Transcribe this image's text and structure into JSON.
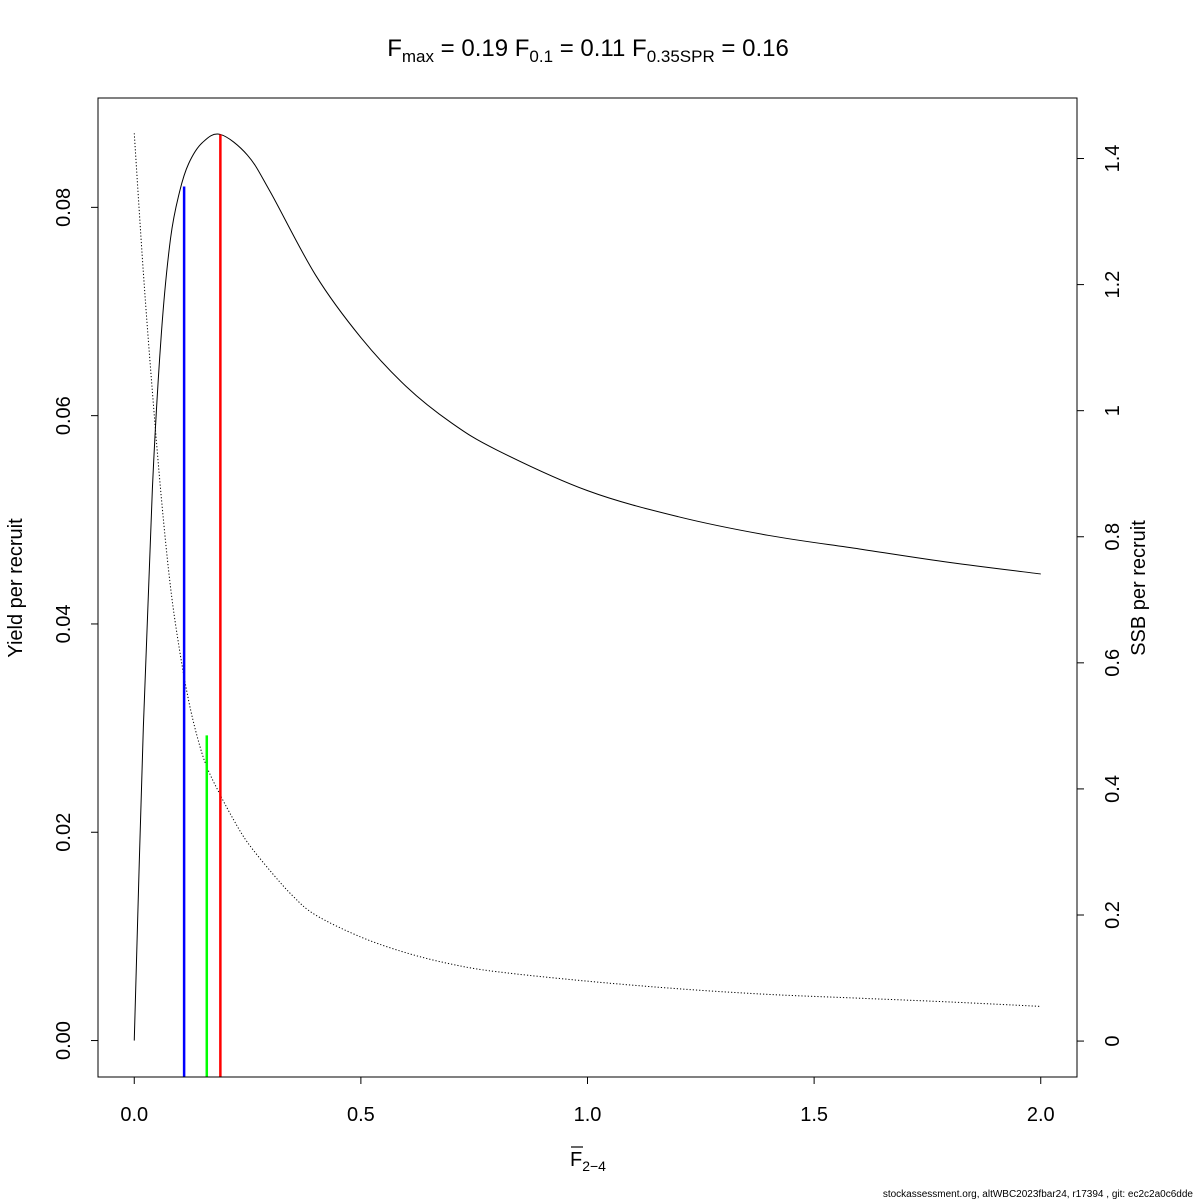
{
  "chart_data": {
    "type": "line",
    "title": {
      "fmax": {
        "sym": "F",
        "sub": "max",
        "value": "0.19"
      },
      "f01": {
        "sym": "F",
        "sub": "0.1",
        "value": "0.11"
      },
      "f035": {
        "sym": "F",
        "sub": "0.35SPR",
        "value": "0.16"
      }
    },
    "xlabel": {
      "sym": "F",
      "sub": "2−4"
    },
    "ylabel_left": "Yield per recruit",
    "ylabel_right": "SSB per recruit",
    "xlim": [
      -0.08,
      2.08
    ],
    "ylim_left": [
      -0.0035,
      0.0905
    ],
    "ylim_right": [
      -0.057,
      1.496
    ],
    "x_ticks": [
      0,
      0.5,
      1,
      1.5,
      2
    ],
    "x_tick_labels": [
      "0.0",
      "0.5",
      "1.0",
      "1.5",
      "2.0"
    ],
    "y_left_ticks": [
      0,
      0.02,
      0.04,
      0.06,
      0.08
    ],
    "y_left_tick_labels": [
      "0.00",
      "0.02",
      "0.04",
      "0.06",
      "0.08"
    ],
    "y_right_ticks": [
      0,
      0.2,
      0.4,
      0.6,
      0.8,
      1,
      1.2,
      1.4
    ],
    "y_right_tick_labels": [
      "0",
      "0.2",
      "0.4",
      "0.6",
      "0.8",
      "1",
      "1.2",
      "1.4"
    ],
    "series": [
      {
        "style": "solid",
        "axis": "left",
        "color": "#000000",
        "x": [
          0,
          0.02,
          0.04,
          0.06,
          0.08,
          0.1,
          0.12,
          0.15,
          0.19,
          0.25,
          0.3,
          0.4,
          0.5,
          0.6,
          0.7,
          0.8,
          1.0,
          1.2,
          1.4,
          1.6,
          1.8,
          2.0
        ],
        "y": [
          0,
          0.03,
          0.053,
          0.068,
          0.077,
          0.0815,
          0.0842,
          0.0862,
          0.087,
          0.085,
          0.0815,
          0.0735,
          0.0675,
          0.0628,
          0.0593,
          0.0567,
          0.0528,
          0.0503,
          0.0485,
          0.0472,
          0.0459,
          0.0448
        ]
      },
      {
        "style": "dotted",
        "axis": "right",
        "color": "#000000",
        "x": [
          0,
          0.02,
          0.04,
          0.06,
          0.08,
          0.1,
          0.12,
          0.14,
          0.16,
          0.19,
          0.22,
          0.25,
          0.3,
          0.35,
          0.4,
          0.5,
          0.6,
          0.7,
          0.8,
          1.0,
          1.2,
          1.4,
          1.6,
          1.8,
          2.0
        ],
        "y": [
          1.44,
          1.22,
          1.03,
          0.86,
          0.72,
          0.62,
          0.54,
          0.48,
          0.435,
          0.39,
          0.35,
          0.315,
          0.27,
          0.23,
          0.2,
          0.165,
          0.14,
          0.122,
          0.11,
          0.095,
          0.083,
          0.074,
          0.068,
          0.062,
          0.055
        ]
      }
    ],
    "reference_lines": [
      {
        "name": "F0.1",
        "x": 0.11,
        "y_top": 0.082,
        "color": "#0000ff"
      },
      {
        "name": "F0.35SPR",
        "x": 0.16,
        "y_top": 0.0293,
        "color": "#00ff00"
      },
      {
        "name": "Fmax",
        "x": 0.19,
        "y_top": 0.087,
        "color": "#ff0000"
      }
    ]
  },
  "footer": "stockassessment.org, altWBC2023fbar24, r17394 , git: ec2c2a0c6dde"
}
